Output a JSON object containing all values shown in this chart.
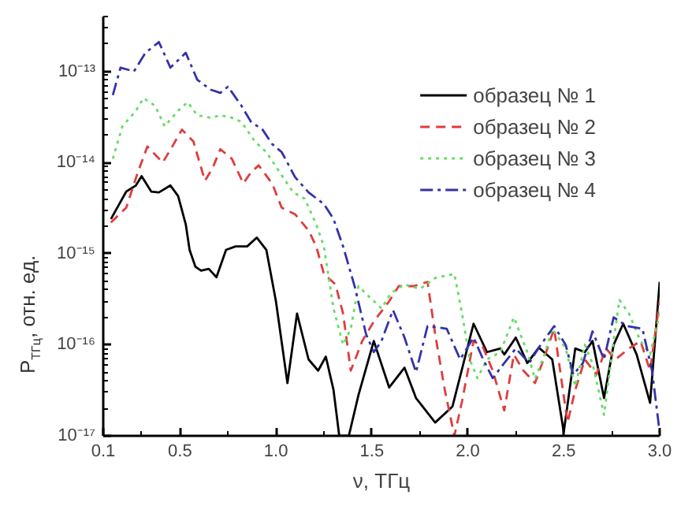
{
  "chart_data": {
    "type": "line",
    "xlabel": "ν, ТГц",
    "ylabel": "P$_{ТГц}$, отн. ед.",
    "log": "y",
    "grid": false,
    "legend": "top right",
    "marker": "none",
    "xlim": [
      0.1,
      3.0
    ],
    "xticks": [
      0.1,
      0.5,
      {
        "value": 1,
        "label": "1.0"
      },
      1.5,
      {
        "value": 2,
        "label": "2.0"
      },
      2.5,
      {
        "value": 3,
        "label": "3.0"
      }
    ],
    "ylim": [
      1e-17,
      4e-13
    ],
    "yticks": [
      {
        "value": 1e-17,
        "label": "10⁻¹⁷"
      },
      {
        "value": 1e-16,
        "label": "10⁻¹⁶"
      },
      {
        "value": 1e-15,
        "label": "10⁻¹⁵"
      },
      {
        "value": 1e-14,
        "label": "10⁻¹⁴"
      },
      {
        "value": 1e-13,
        "label": "10⁻¹³"
      }
    ],
    "series": [
      {
        "name": "образец № 1",
        "color": "#000000",
        "line_style": "solid",
        "x": [
          0.14,
          0.22,
          0.27,
          0.3,
          0.35,
          0.39,
          0.45,
          0.49,
          0.53,
          0.55,
          0.58,
          0.61,
          0.65,
          0.69,
          0.74,
          0.79,
          0.85,
          0.9,
          0.95,
          1.0,
          1.06,
          1.11,
          1.17,
          1.22,
          1.26,
          1.3,
          1.33,
          1.38,
          1.43,
          1.51,
          1.59,
          1.67,
          1.73,
          1.83,
          1.92,
          2.03,
          2.1,
          2.17,
          2.19,
          2.25,
          2.31,
          2.37,
          2.44,
          2.5,
          2.56,
          2.61,
          2.65,
          2.71,
          2.76,
          2.81,
          2.88,
          2.95,
          3.0
        ],
        "values": [
          2.4e-15,
          4.8e-15,
          5.6e-15,
          7.1e-15,
          4.8e-15,
          4.7e-15,
          5.6e-15,
          4.3e-15,
          2.1e-15,
          1.1e-15,
          7.2e-16,
          6.5e-16,
          6.8e-16,
          5.5e-16,
          1.1e-15,
          1.2e-15,
          1.2e-15,
          1.5e-15,
          1.1e-15,
          3e-16,
          3.8e-17,
          2.2e-16,
          6.9e-17,
          5.2e-17,
          7.4e-17,
          3.2e-17,
          1e-17,
          1e-17,
          2.8e-17,
          1.1e-16,
          3.4e-17,
          5.6e-17,
          2.6e-17,
          1.4e-17,
          2.1e-17,
          1.7e-16,
          8.3e-17,
          9.1e-17,
          7.8e-17,
          1.2e-16,
          6.3e-17,
          9.3e-17,
          6.9e-17,
          1.1e-17,
          9.1e-17,
          8.3e-17,
          1.1e-16,
          2.6e-17,
          1e-16,
          1.7e-16,
          7.8e-17,
          2.3e-17,
          4.9e-16
        ]
      },
      {
        "name": "образец № 2",
        "color": "#e03c3c",
        "line_style": "dashed",
        "x": [
          0.14,
          0.22,
          0.28,
          0.33,
          0.41,
          0.46,
          0.51,
          0.57,
          0.63,
          0.67,
          0.71,
          0.77,
          0.83,
          0.87,
          0.91,
          0.98,
          1.03,
          1.1,
          1.17,
          1.21,
          1.25,
          1.31,
          1.35,
          1.39,
          1.45,
          1.51,
          1.59,
          1.64,
          1.72,
          1.79,
          1.83,
          1.88,
          1.93,
          1.97,
          2.03,
          2.08,
          2.13,
          2.19,
          2.24,
          2.29,
          2.35,
          2.4,
          2.45,
          2.52,
          2.56,
          2.61,
          2.67,
          2.72,
          2.77,
          2.84,
          2.9,
          2.95,
          3.0
        ],
        "values": [
          2.2e-15,
          3.2e-15,
          7.8e-15,
          1.5e-14,
          1e-14,
          1.5e-14,
          2.3e-14,
          1.7e-14,
          6.3e-15,
          8.7e-15,
          1.4e-14,
          1.1e-14,
          5.9e-15,
          7.8e-15,
          9.3e-15,
          5.9e-15,
          3.2e-15,
          2.7e-15,
          1.8e-15,
          1.2e-15,
          6e-16,
          4.6e-16,
          2.2e-16,
          5.2e-17,
          1.1e-16,
          1.8e-16,
          3e-16,
          4.4e-16,
          4.4e-16,
          4.9e-16,
          1.3e-16,
          3.2e-17,
          1e-17,
          2.4e-17,
          1.1e-16,
          9.3e-17,
          5.2e-17,
          1.9e-17,
          7.8e-17,
          5.2e-17,
          3.8e-17,
          7.4e-17,
          1.5e-16,
          1.4e-17,
          3.2e-17,
          6.9e-17,
          4.7e-17,
          9.1e-17,
          6.9e-17,
          9.1e-17,
          1.1e-16,
          5.2e-17,
          3e-16
        ]
      },
      {
        "name": "образец № 3",
        "color": "#66dd66",
        "line_style": "dotted",
        "x": [
          0.15,
          0.2,
          0.27,
          0.31,
          0.37,
          0.42,
          0.49,
          0.54,
          0.59,
          0.66,
          0.71,
          0.77,
          0.82,
          0.89,
          0.95,
          1.02,
          1.09,
          1.15,
          1.21,
          1.25,
          1.3,
          1.35,
          1.39,
          1.43,
          1.49,
          1.55,
          1.6,
          1.67,
          1.75,
          1.83,
          1.93,
          1.97,
          2.01,
          2.05,
          2.1,
          2.17,
          2.24,
          2.31,
          2.35,
          2.4,
          2.44,
          2.51,
          2.56,
          2.61,
          2.65,
          2.71,
          2.76,
          2.79,
          2.84,
          2.9,
          2.95,
          3.0
        ],
        "values": [
          1.1e-14,
          2.5e-14,
          3.7e-14,
          5.1e-14,
          4.2e-14,
          2.5e-14,
          3.7e-14,
          4.6e-14,
          3.3e-14,
          3.1e-14,
          3.3e-14,
          3.1e-14,
          2.8e-14,
          1.7e-14,
          1.3e-14,
          7.8e-15,
          4.7e-15,
          4e-15,
          2.1e-15,
          1.2e-15,
          2.5e-16,
          1e-16,
          1.5e-16,
          4.4e-16,
          3.3e-16,
          2.5e-16,
          3.7e-16,
          4.6e-16,
          4.1e-16,
          5.4e-16,
          6e-16,
          2.2e-16,
          6.9e-17,
          4.3e-17,
          6.9e-17,
          8.3e-17,
          2e-16,
          8.3e-17,
          4.2e-17,
          7.8e-17,
          1.5e-16,
          9.1e-17,
          3.5e-17,
          1e-16,
          6.2e-17,
          1.7e-17,
          1.1e-16,
          3.1e-16,
          2.2e-16,
          1.1e-16,
          7.8e-17,
          2.2e-16
        ]
      },
      {
        "name": "образец № 4",
        "color": "#3333aa",
        "line_style": "dashdot",
        "x": [
          0.15,
          0.19,
          0.26,
          0.32,
          0.39,
          0.45,
          0.53,
          0.59,
          0.66,
          0.71,
          0.75,
          0.82,
          0.87,
          0.93,
          0.98,
          1.03,
          1.1,
          1.17,
          1.25,
          1.3,
          1.35,
          1.41,
          1.47,
          1.51,
          1.55,
          1.61,
          1.67,
          1.73,
          1.79,
          1.89,
          1.96,
          2.03,
          2.08,
          2.13,
          2.19,
          2.25,
          2.32,
          2.37,
          2.45,
          2.51,
          2.55,
          2.6,
          2.65,
          2.71,
          2.76,
          2.83,
          2.91,
          2.96,
          3.0
        ],
        "values": [
          5.5e-14,
          1.1e-13,
          1e-13,
          1.6e-13,
          2.1e-13,
          1.1e-13,
          1.6e-13,
          8.1e-14,
          6.3e-14,
          5.8e-14,
          6.8e-14,
          4.2e-14,
          2.8e-14,
          2.3e-14,
          1.6e-14,
          1.3e-14,
          6.9e-15,
          4.7e-15,
          3.5e-15,
          2.4e-15,
          1.2e-15,
          4.4e-16,
          1.3e-16,
          8.3e-17,
          1.1e-16,
          2.4e-16,
          1.2e-16,
          5e-17,
          1.6e-16,
          1.5e-16,
          6.9e-17,
          1.2e-16,
          6.9e-17,
          4.3e-17,
          6.3e-17,
          9.1e-17,
          6.3e-17,
          9.3e-17,
          1.6e-16,
          1e-16,
          4.7e-17,
          6.3e-17,
          1.4e-16,
          6.9e-17,
          2e-16,
          1.6e-16,
          1.5e-16,
          5.2e-17,
          1.1e-17
        ]
      }
    ]
  }
}
